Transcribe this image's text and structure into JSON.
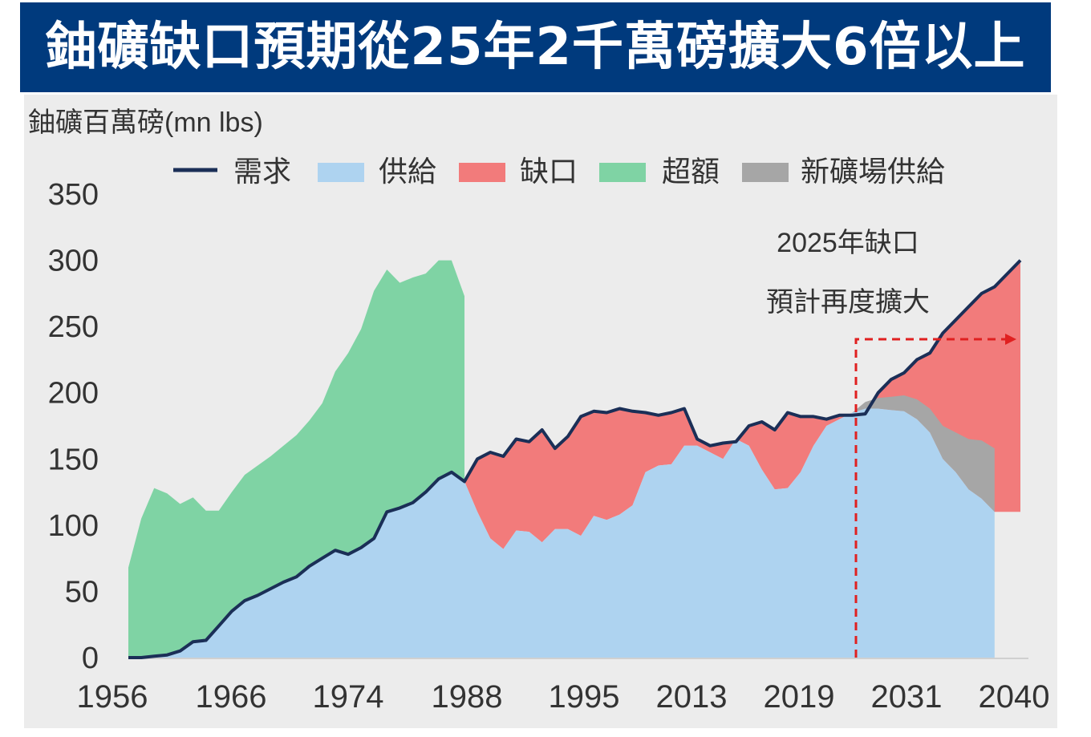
{
  "title": "鈾礦缺口預期從25年2千萬磅擴大6倍以上",
  "chart_data": {
    "type": "area",
    "ylabel": "鈾礦百萬磅(mn lbs)",
    "ylim": [
      0,
      350
    ],
    "yticks": [
      0,
      50,
      100,
      150,
      200,
      250,
      300,
      350
    ],
    "xtick_labels": [
      "1956",
      "1966",
      "1974",
      "1988",
      "1995",
      "2013",
      "2019",
      "2031",
      "2040"
    ],
    "legend": [
      "需求",
      "供給",
      "缺口",
      "超額",
      "新礦場供給"
    ],
    "legend_position": "top",
    "colors": {
      "demand": "#1b2f57",
      "supply": "#aed3f0",
      "gap": "#f27b7b",
      "surplus": "#7fd3a4",
      "new_mine": "#a6a6a6",
      "annotation": "#e02020"
    },
    "annotation": {
      "line1": "2025年缺口",
      "line2": "預計再度擴大"
    },
    "series": [
      {
        "name": "需求",
        "values": [
          0,
          0,
          1,
          2,
          5,
          12,
          13,
          24,
          35,
          43,
          47,
          52,
          57,
          61,
          69,
          75,
          81,
          78,
          83,
          90,
          110,
          113,
          117,
          125,
          135,
          140,
          133,
          150,
          155,
          152,
          165,
          163,
          172,
          158,
          167,
          182,
          186,
          185,
          188,
          186,
          185,
          183,
          185,
          188,
          165,
          160,
          162,
          163,
          175,
          178,
          172,
          185,
          182,
          182,
          180,
          183,
          183,
          184,
          200,
          210,
          215,
          225,
          230,
          245,
          255,
          265,
          275,
          280,
          290,
          300
        ]
      },
      {
        "name": "供給",
        "values": [
          0,
          0,
          1,
          2,
          5,
          12,
          13,
          24,
          35,
          43,
          47,
          52,
          57,
          61,
          69,
          75,
          81,
          78,
          83,
          90,
          110,
          113,
          117,
          125,
          135,
          140,
          133,
          110,
          90,
          82,
          96,
          95,
          87,
          97,
          97,
          92,
          107,
          104,
          108,
          115,
          140,
          145,
          146,
          160,
          160,
          155,
          150,
          165,
          160,
          142,
          127,
          128,
          140,
          160,
          175,
          180,
          185,
          188,
          188,
          187,
          186,
          180,
          170,
          150,
          140,
          127,
          120,
          110
        ]
      },
      {
        "name": "超額",
        "values": [
          68,
          105,
          127,
          122,
          111,
          109,
          98,
          87,
          90,
          95,
          98,
          100,
          103,
          107,
          110,
          117,
          135,
          152,
          165,
          187,
          183,
          170,
          170,
          165,
          165,
          160,
          140
        ]
      },
      {
        "name": "新礦場供給",
        "values": [
          0,
          5,
          8,
          10,
          12,
          15,
          18,
          25,
          30,
          38,
          44,
          48
        ]
      }
    ]
  }
}
